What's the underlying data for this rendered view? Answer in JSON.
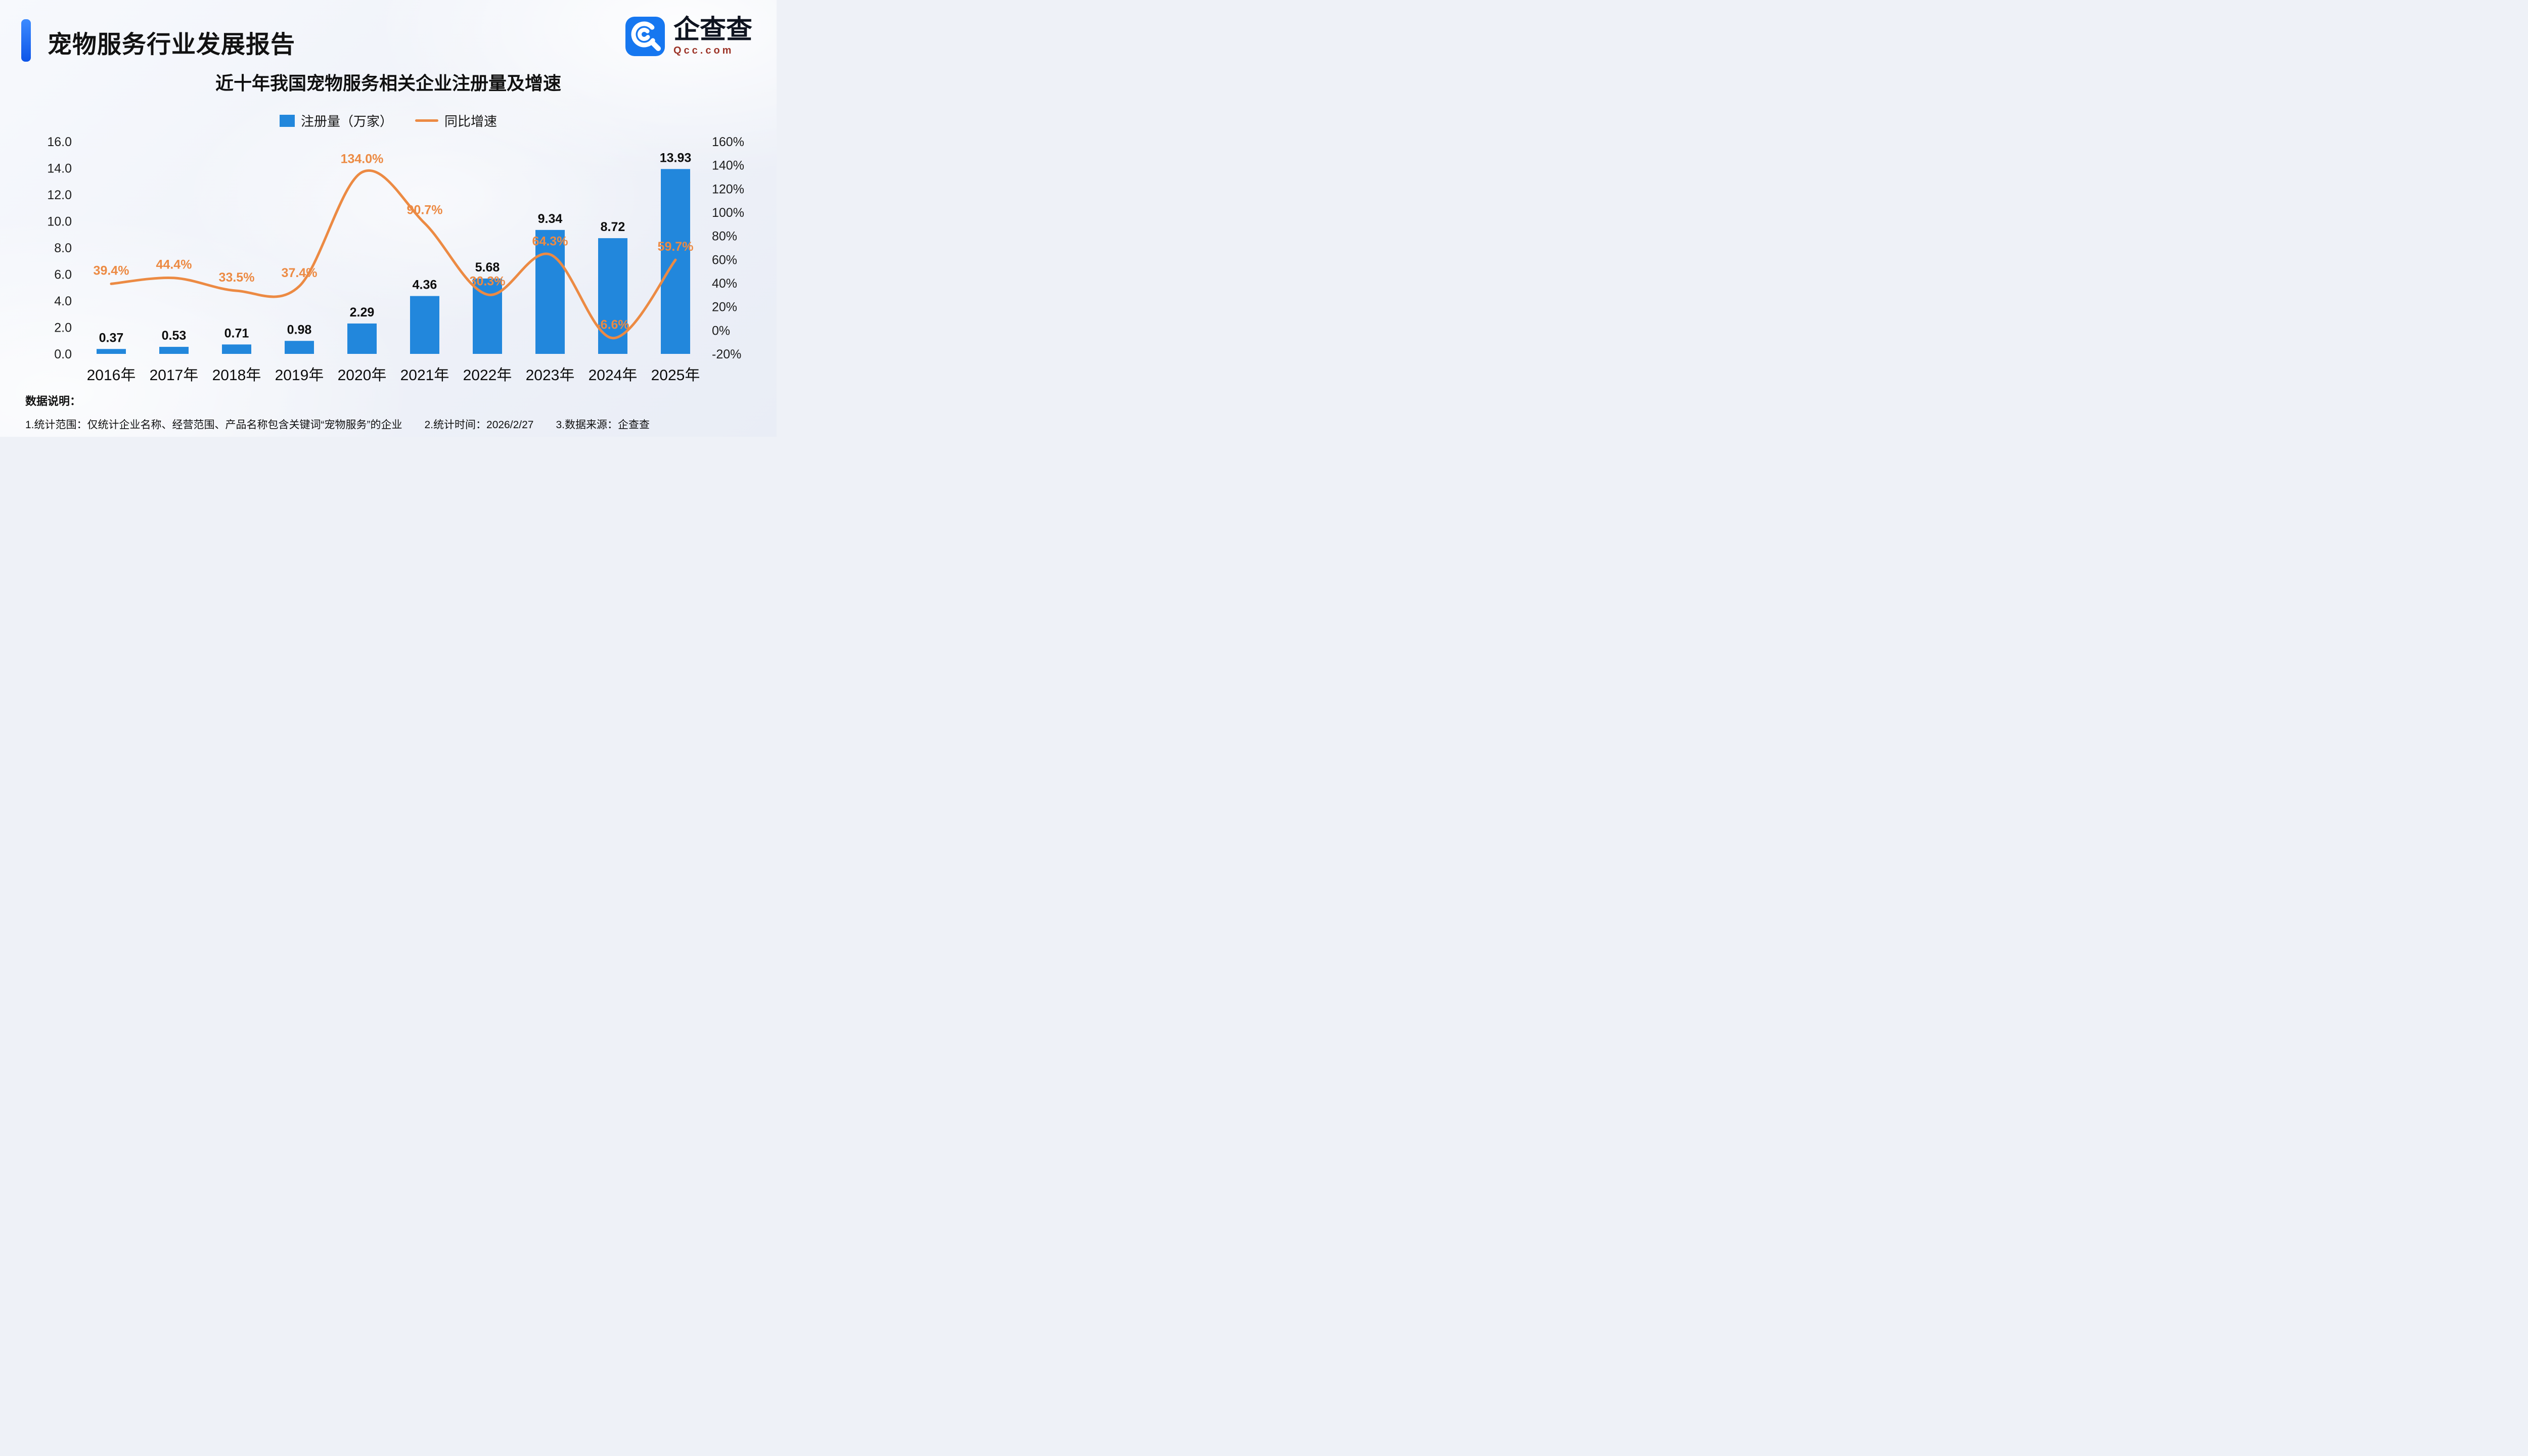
{
  "header": {
    "title": "宠物服务行业发展报告",
    "logo": {
      "brand": "企查查",
      "domain": "Qcc.com"
    }
  },
  "theme": {
    "accent_blue": "#1b6ef0",
    "bar_blue": "#2287dc",
    "line_orange": "#ec8a43"
  },
  "chart_data": {
    "type": "bar+line",
    "title": "近十年我国宠物服务相关企业注册量及增速",
    "categories": [
      "2016年",
      "2017年",
      "2018年",
      "2019年",
      "2020年",
      "2021年",
      "2022年",
      "2023年",
      "2024年",
      "2025年"
    ],
    "series": [
      {
        "name": "注册量（万家）",
        "type": "bar",
        "axis": "left",
        "color": "#2287dc",
        "values": [
          0.37,
          0.53,
          0.71,
          0.98,
          2.29,
          4.36,
          5.68,
          9.34,
          8.72,
          13.93
        ],
        "labels": [
          "0.37",
          "0.53",
          "0.71",
          "0.98",
          "2.29",
          "4.36",
          "5.68",
          "9.34",
          "8.72",
          "13.93"
        ]
      },
      {
        "name": "同比增速",
        "type": "line",
        "axis": "right",
        "color": "#ec8a43",
        "values": [
          39.4,
          44.4,
          33.5,
          37.4,
          134.0,
          90.7,
          30.3,
          64.3,
          -6.6,
          59.7
        ],
        "labels": [
          "39.4%",
          "44.4%",
          "33.5%",
          "37.4%",
          "134.0%",
          "90.7%",
          "30.3%",
          "64.3%",
          "-6.6%",
          "59.7%"
        ]
      }
    ],
    "left_axis": {
      "min": 0,
      "max": 16,
      "step": 2,
      "ticks": [
        "16.0",
        "14.0",
        "12.0",
        "10.0",
        "8.0",
        "6.0",
        "4.0",
        "2.0",
        "0.0"
      ]
    },
    "right_axis": {
      "min": -20,
      "max": 160,
      "step": 20,
      "ticks": [
        "160%",
        "140%",
        "120%",
        "100%",
        "80%",
        "60%",
        "40%",
        "20%",
        "0%",
        "-20%"
      ]
    },
    "legend_position": "top-center",
    "grid": false
  },
  "footer": {
    "heading": "数据说明：",
    "notes": [
      "1.统计范围：仅统计企业名称、经营范围、产品名称包含关键词“宠物服务”的企业",
      "2.统计时间：2026/2/27",
      "3.数据来源：企查查"
    ]
  }
}
